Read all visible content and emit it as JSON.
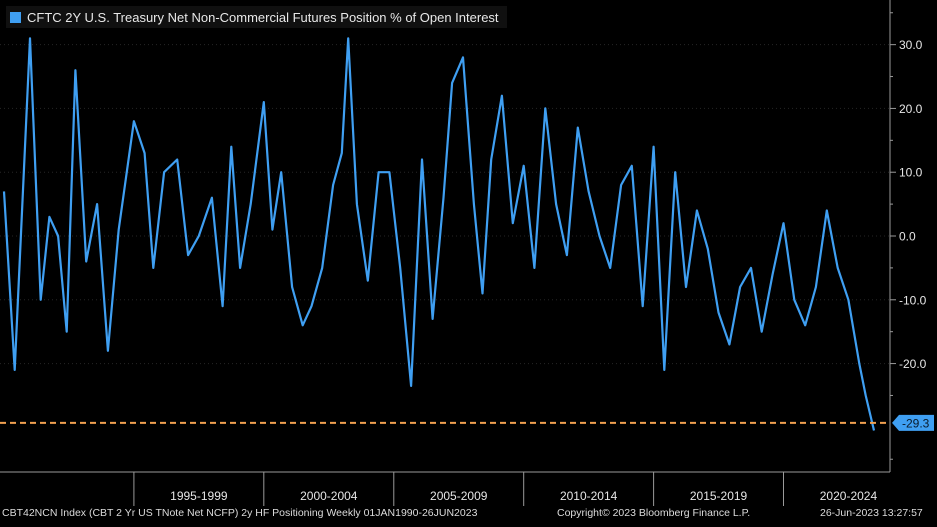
{
  "colors": {
    "background": "#000000",
    "series": "#3f9ff2",
    "reference_line": "#f0a050",
    "grid": "#262626",
    "axis": "#9a9a9a",
    "label_box": "#3f9ff2",
    "label_text": "#0a1a2a"
  },
  "chart_data": {
    "type": "line",
    "title": "",
    "xlabel": "",
    "ylabel": "",
    "xlim": [
      "1990-01-01",
      "2023-06-26"
    ],
    "ylim": [
      -37,
      37
    ],
    "y_ticks": [
      30.0,
      20.0,
      10.0,
      0.0,
      -10.0,
      -20.0
    ],
    "y_tick_labels": [
      "30.0",
      "20.0",
      "10.0",
      "0.0",
      "-10.0",
      "-20.0"
    ],
    "y_axis_side": "right",
    "x_period_labels": [
      "1995-1999",
      "2000-2004",
      "2005-2009",
      "2010-2014",
      "2015-2019",
      "2020-2024"
    ],
    "x_period_starts": [
      "1995-01-01",
      "2000-01-01",
      "2005-01-01",
      "2010-01-01",
      "2015-01-01",
      "2020-01-01"
    ],
    "grid": true,
    "legend_position": "top-left",
    "series": [
      {
        "name": "CFTC 2Y U.S. Treasury Net Non-Commercial Futures Position % of Open Interest",
        "x": [
          "1990-01-01",
          "1990-06-01",
          "1991-01-01",
          "1991-06-01",
          "1991-10-01",
          "1992-02-01",
          "1992-06-01",
          "1992-10-01",
          "1993-03-01",
          "1993-08-01",
          "1994-01-01",
          "1994-06-01",
          "1995-01-01",
          "1995-06-01",
          "1995-10-01",
          "1996-03-01",
          "1996-09-01",
          "1997-02-01",
          "1997-07-01",
          "1998-01-01",
          "1998-06-01",
          "1998-10-01",
          "1999-02-01",
          "1999-07-01",
          "2000-01-01",
          "2000-05-01",
          "2000-09-01",
          "2001-02-01",
          "2001-07-01",
          "2001-11-01",
          "2002-04-01",
          "2002-09-01",
          "2003-01-01",
          "2003-04-01",
          "2003-08-01",
          "2004-01-01",
          "2004-06-01",
          "2004-11-01",
          "2005-04-01",
          "2005-09-01",
          "2006-02-01",
          "2006-07-01",
          "2006-12-01",
          "2007-04-01",
          "2007-09-01",
          "2008-02-01",
          "2008-06-01",
          "2008-10-01",
          "2009-03-01",
          "2009-08-01",
          "2010-01-01",
          "2010-06-01",
          "2010-11-01",
          "2011-04-01",
          "2011-09-01",
          "2012-02-01",
          "2012-07-01",
          "2012-12-01",
          "2013-05-01",
          "2013-10-01",
          "2014-03-01",
          "2014-08-01",
          "2015-01-01",
          "2015-06-01",
          "2015-11-01",
          "2016-04-01",
          "2016-09-01",
          "2017-02-01",
          "2017-07-01",
          "2017-12-01",
          "2018-05-01",
          "2018-10-01",
          "2019-03-01",
          "2019-08-01",
          "2020-01-01",
          "2020-06-01",
          "2020-11-01",
          "2021-04-01",
          "2021-09-01",
          "2022-02-01",
          "2022-07-01",
          "2022-12-01",
          "2023-03-01",
          "2023-06-26"
        ],
        "values": [
          7,
          -21,
          31,
          -10,
          3,
          0,
          -15,
          26,
          -4,
          5,
          -18,
          1,
          18,
          13,
          -5,
          10,
          12,
          -3,
          0,
          6,
          -11,
          14,
          -5,
          5,
          21,
          1,
          10,
          -8,
          -14,
          -11,
          -5,
          8,
          13,
          31,
          5,
          -7,
          10,
          10,
          -5,
          -23.5,
          12,
          -13,
          6,
          24,
          28,
          5,
          -9,
          12,
          22,
          2,
          11,
          -5,
          20,
          5,
          -3,
          17,
          7,
          0,
          -5,
          8,
          11,
          -11,
          14,
          -21,
          10,
          -8,
          4,
          -2,
          -12,
          -17,
          -8,
          -5,
          -15,
          -6,
          2,
          -10,
          -14,
          -8,
          4,
          -5,
          -10,
          -20,
          -25,
          -30.5
        ]
      }
    ],
    "reference_line": {
      "value": -29.3,
      "label": "-29.3"
    }
  },
  "footer": {
    "left": "CBT42NCN Index (CBT 2 Yr US TNote Net NCFP) 2y HF Positioning  Weekly 01JAN1990-26JUN2023",
    "center": "Copyright© 2023 Bloomberg Finance L.P.",
    "right": "26-Jun-2023 13:27:57"
  }
}
